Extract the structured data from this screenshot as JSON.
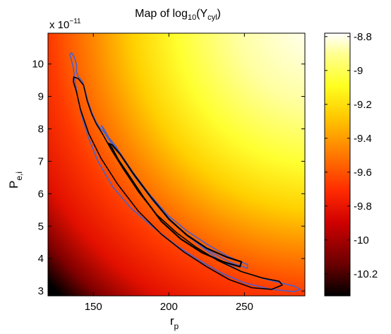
{
  "chart_data": {
    "type": "heatmap",
    "title_prefix": "Map of log",
    "title_sub": "10",
    "title_mid": "(Y",
    "title_sub2": "cyl",
    "title_suffix": ")",
    "xlabel_main": "r",
    "xlabel_sub": "p",
    "ylabel_main": "P",
    "ylabel_sub": "e,i",
    "y_multiplier_prefix": "x 10",
    "y_multiplier_exp": "−11",
    "xlim": [
      120,
      290
    ],
    "ylim": [
      2.85,
      10.95
    ],
    "x_ticks": [
      {
        "value": 150,
        "label": "150"
      },
      {
        "value": 200,
        "label": "200"
      },
      {
        "value": 250,
        "label": "250"
      }
    ],
    "y_ticks": [
      {
        "value": 3,
        "label": "3"
      },
      {
        "value": 4,
        "label": "4"
      },
      {
        "value": 5,
        "label": "5"
      },
      {
        "value": 6,
        "label": "6"
      },
      {
        "value": 7,
        "label": "7"
      },
      {
        "value": 8,
        "label": "8"
      },
      {
        "value": 9,
        "label": "9"
      },
      {
        "value": 10,
        "label": "10"
      }
    ],
    "colorbar": {
      "colormap": "hot",
      "range": [
        -10.33,
        -8.78
      ],
      "ticks": [
        {
          "value": -8.8,
          "label": "-8.8"
        },
        {
          "value": -9.0,
          "label": "-9"
        },
        {
          "value": -9.2,
          "label": "-9.2"
        },
        {
          "value": -9.4,
          "label": "-9.4"
        },
        {
          "value": -9.6,
          "label": "-9.6"
        },
        {
          "value": -9.8,
          "label": "-9.8"
        },
        {
          "value": -10.0,
          "label": "-10"
        },
        {
          "value": -10.2,
          "label": "-10.2"
        }
      ]
    },
    "contours": [
      {
        "color": "#4a5fc8",
        "level": "outer",
        "points": [
          [
            135.5,
            10.35
          ],
          [
            137.5,
            10.2
          ],
          [
            139,
            9.95
          ],
          [
            138.8,
            9.75
          ],
          [
            140,
            9.62
          ],
          [
            143,
            9.45
          ],
          [
            146,
            8.92
          ],
          [
            149,
            8.5
          ],
          [
            152,
            8.2
          ],
          [
            155,
            8.0
          ],
          [
            158,
            7.85
          ],
          [
            162,
            7.6
          ],
          [
            168,
            7.2
          ],
          [
            177,
            6.55
          ],
          [
            190,
            5.75
          ],
          [
            205,
            5.0
          ],
          [
            218,
            4.5
          ],
          [
            232,
            4.0
          ],
          [
            248,
            3.6
          ],
          [
            265,
            3.35
          ],
          [
            283,
            3.15
          ],
          [
            287,
            3.05
          ],
          [
            283,
            2.98
          ],
          [
            268,
            3.05
          ],
          [
            250,
            3.25
          ],
          [
            235,
            3.55
          ],
          [
            220,
            3.95
          ],
          [
            205,
            4.4
          ],
          [
            190,
            4.95
          ],
          [
            175,
            5.55
          ],
          [
            163,
            6.2
          ],
          [
            153,
            7.0
          ],
          [
            147,
            7.7
          ],
          [
            142,
            8.45
          ],
          [
            139.5,
            9.0
          ],
          [
            137.8,
            9.5
          ],
          [
            136.5,
            9.95
          ],
          [
            134.5,
            10.3
          ]
        ]
      },
      {
        "color": "#4a5fc8",
        "level": "inner",
        "points": [
          [
            155.5,
            8.1
          ],
          [
            158.5,
            7.8
          ],
          [
            162,
            7.55
          ],
          [
            167,
            7.3
          ],
          [
            175,
            6.75
          ],
          [
            187,
            5.95
          ],
          [
            200,
            5.2
          ],
          [
            212,
            4.7
          ],
          [
            225,
            4.28
          ],
          [
            240,
            3.9
          ],
          [
            252,
            3.7
          ],
          [
            252,
            3.82
          ],
          [
            240,
            4.05
          ],
          [
            226,
            4.42
          ],
          [
            212,
            4.85
          ],
          [
            199,
            5.35
          ],
          [
            186,
            6.05
          ],
          [
            174,
            6.8
          ],
          [
            165,
            7.45
          ],
          [
            160,
            7.75
          ],
          [
            157,
            8.0
          ]
        ]
      },
      {
        "color": "#000000",
        "level": "outer",
        "points": [
          [
            137,
            9.6
          ],
          [
            140,
            9.55
          ],
          [
            143.5,
            9.35
          ],
          [
            146,
            8.85
          ],
          [
            149,
            8.45
          ],
          [
            152,
            8.15
          ],
          [
            156,
            7.85
          ],
          [
            162,
            7.35
          ],
          [
            170,
            6.75
          ],
          [
            180,
            6.05
          ],
          [
            192,
            5.35
          ],
          [
            205,
            4.8
          ],
          [
            218,
            4.35
          ],
          [
            232,
            3.95
          ],
          [
            248,
            3.6
          ],
          [
            262,
            3.4
          ],
          [
            273,
            3.3
          ],
          [
            275,
            3.18
          ],
          [
            268,
            3.05
          ],
          [
            255,
            3.1
          ],
          [
            240,
            3.35
          ],
          [
            225,
            3.75
          ],
          [
            210,
            4.2
          ],
          [
            195,
            4.75
          ],
          [
            180,
            5.45
          ],
          [
            166,
            6.3
          ],
          [
            155,
            7.1
          ],
          [
            147,
            7.85
          ],
          [
            141.5,
            8.6
          ],
          [
            138.8,
            9.15
          ],
          [
            136.8,
            9.45
          ]
        ]
      },
      {
        "color": "#000000",
        "level": "inner",
        "points": [
          [
            160,
            7.55
          ],
          [
            162.5,
            7.4
          ],
          [
            166.5,
            7.05
          ],
          [
            173,
            6.6
          ],
          [
            183,
            5.9
          ],
          [
            195,
            5.15
          ],
          [
            208,
            4.6
          ],
          [
            222,
            4.18
          ],
          [
            236,
            3.9
          ],
          [
            247,
            3.75
          ],
          [
            248,
            3.9
          ],
          [
            238,
            4.05
          ],
          [
            225,
            4.32
          ],
          [
            212,
            4.72
          ],
          [
            200,
            5.22
          ],
          [
            188,
            5.9
          ],
          [
            176,
            6.65
          ],
          [
            168,
            7.2
          ],
          [
            162.5,
            7.5
          ]
        ]
      }
    ]
  }
}
